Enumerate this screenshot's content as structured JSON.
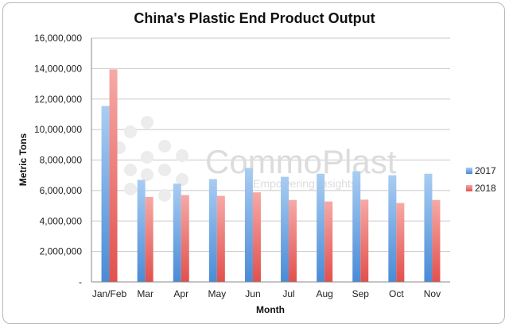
{
  "chart_data": {
    "type": "bar",
    "title": "China's Plastic End Product Output",
    "xlabel": "Month",
    "ylabel": "Metric Tons",
    "ylim": [
      0,
      16000000
    ],
    "yticks": [
      0,
      2000000,
      4000000,
      6000000,
      8000000,
      10000000,
      12000000,
      14000000,
      16000000
    ],
    "ytick_labels": [
      "-",
      "2,000,000",
      "4,000,000",
      "6,000,000",
      "8,000,000",
      "10,000,000",
      "12,000,000",
      "14,000,000",
      "16,000,000"
    ],
    "grid": true,
    "legend_position": "right",
    "categories": [
      "Jan/Feb",
      "Mar",
      "Apr",
      "May",
      "Jun",
      "Jul",
      "Aug",
      "Sep",
      "Oct",
      "Nov"
    ],
    "series": [
      {
        "name": "2017",
        "color": "#5b9bd5",
        "values": [
          11550000,
          6700000,
          6450000,
          6750000,
          7480000,
          6900000,
          7100000,
          7260000,
          7000000,
          7100000
        ]
      },
      {
        "name": "2018",
        "color": "#e8615f",
        "values": [
          13950000,
          5580000,
          5700000,
          5650000,
          5880000,
          5380000,
          5280000,
          5400000,
          5180000,
          5380000
        ]
      }
    ]
  },
  "watermark": {
    "brand": "CommoPlast",
    "tagline": "Empowering Insights"
  }
}
